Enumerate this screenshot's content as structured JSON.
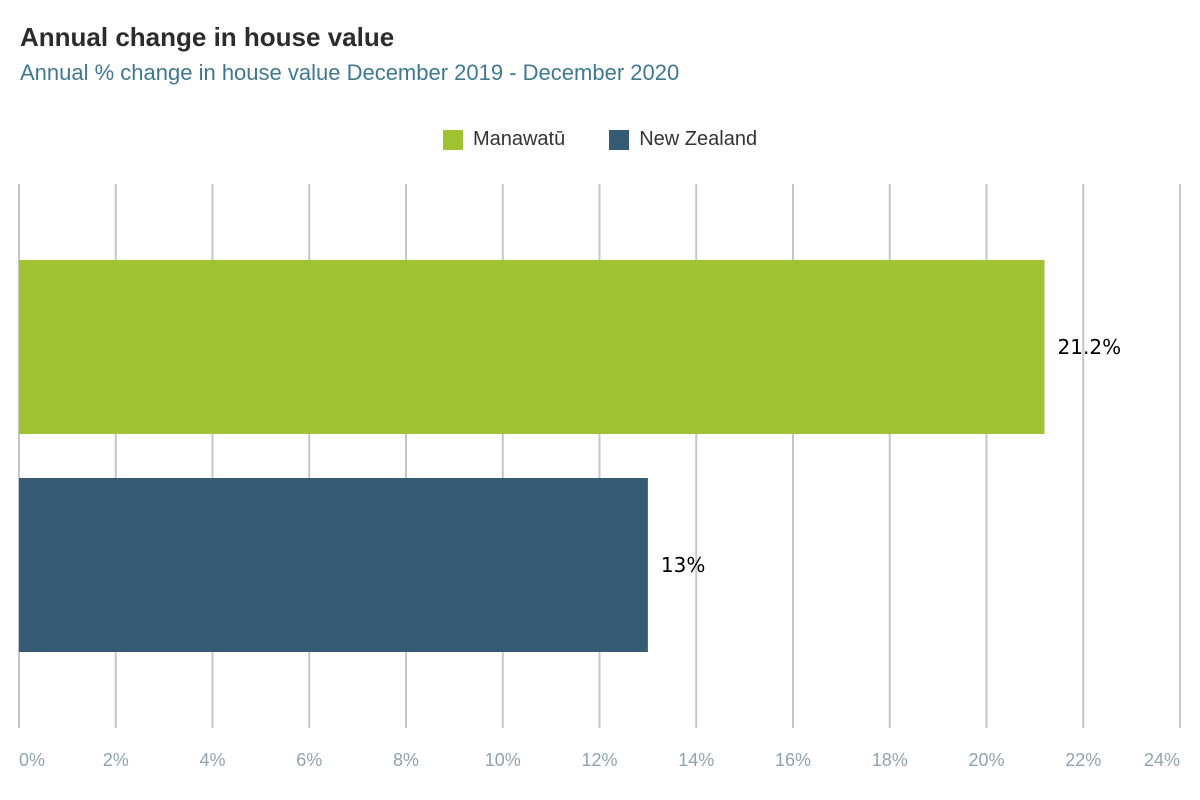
{
  "chart_data": {
    "type": "bar",
    "orientation": "horizontal",
    "title": "Annual change in house value",
    "subtitle": "Annual % change in house value December 2019 - December 2020",
    "series": [
      {
        "name": "Manawatū",
        "value": 21.2,
        "label": "21.2%",
        "color": "#a0c334"
      },
      {
        "name": "New Zealand",
        "value": 13,
        "label": "13%",
        "color": "#345b73"
      }
    ],
    "xlim": [
      0,
      24
    ],
    "ticks": [
      0,
      2,
      4,
      6,
      8,
      10,
      12,
      14,
      16,
      18,
      20,
      22,
      24
    ],
    "tick_labels": [
      "0%",
      "2%",
      "4%",
      "6%",
      "8%",
      "10%",
      "12%",
      "14%",
      "16%",
      "18%",
      "20%",
      "22%",
      "24%"
    ],
    "grid": true,
    "legend_position": "top-center"
  }
}
